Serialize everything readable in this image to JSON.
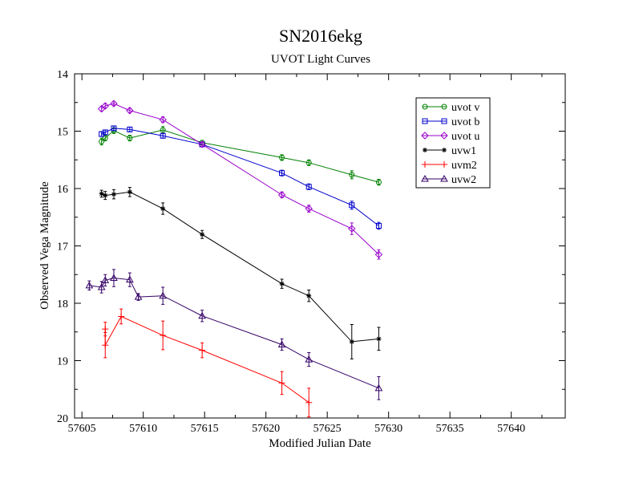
{
  "chart_data": {
    "type": "scatter",
    "title": "SN2016ekg",
    "subtitle": "UVOT Light Curves",
    "xlabel": "Modified Julian Date",
    "ylabel": "Observed Vega Magnitude",
    "xlim": [
      57604.4,
      57644.4
    ],
    "ylim": [
      20,
      14
    ],
    "y_inverted": true,
    "xticks": [
      57605,
      57610,
      57615,
      57620,
      57625,
      57630,
      57635,
      57640
    ],
    "yticks": [
      14,
      15,
      16,
      17,
      18,
      19,
      20
    ],
    "legend_position": "top-right",
    "series": [
      {
        "name": "uvot v",
        "color": "#008000",
        "marker": "circle",
        "points": [
          {
            "x": 57606.6,
            "y": 15.18,
            "err": 0.06
          },
          {
            "x": 57606.9,
            "y": 15.12,
            "err": 0.05
          },
          {
            "x": 57607.6,
            "y": 14.99,
            "err": 0.05
          },
          {
            "x": 57608.9,
            "y": 15.12,
            "err": 0.05
          },
          {
            "x": 57611.6,
            "y": 14.98,
            "err": 0.06
          },
          {
            "x": 57614.8,
            "y": 15.2,
            "err": 0.04
          },
          {
            "x": 57621.3,
            "y": 15.46,
            "err": 0.05
          },
          {
            "x": 57623.5,
            "y": 15.55,
            "err": 0.05
          },
          {
            "x": 57627.0,
            "y": 15.76,
            "err": 0.07
          },
          {
            "x": 57629.2,
            "y": 15.89,
            "err": 0.05
          }
        ]
      },
      {
        "name": "uvot b",
        "color": "#0000cc",
        "marker": "square",
        "points": [
          {
            "x": 57606.6,
            "y": 15.05,
            "err": 0.04
          },
          {
            "x": 57606.9,
            "y": 15.02,
            "err": 0.04
          },
          {
            "x": 57607.6,
            "y": 14.95,
            "err": 0.04
          },
          {
            "x": 57608.9,
            "y": 14.97,
            "err": 0.04
          },
          {
            "x": 57611.6,
            "y": 15.08,
            "err": 0.04
          },
          {
            "x": 57614.8,
            "y": 15.23,
            "err": 0.04
          },
          {
            "x": 57621.3,
            "y": 15.73,
            "err": 0.05
          },
          {
            "x": 57623.5,
            "y": 15.97,
            "err": 0.05
          },
          {
            "x": 57627.0,
            "y": 16.29,
            "err": 0.07
          },
          {
            "x": 57629.2,
            "y": 16.65,
            "err": 0.06
          }
        ]
      },
      {
        "name": "uvot u",
        "color": "#9900cc",
        "marker": "diamond",
        "points": [
          {
            "x": 57606.6,
            "y": 14.61,
            "err": 0.04
          },
          {
            "x": 57606.9,
            "y": 14.56,
            "err": 0.04
          },
          {
            "x": 57607.6,
            "y": 14.52,
            "err": 0.03
          },
          {
            "x": 57608.9,
            "y": 14.64,
            "err": 0.04
          },
          {
            "x": 57611.6,
            "y": 14.8,
            "err": 0.05
          },
          {
            "x": 57614.8,
            "y": 15.23,
            "err": 0.04
          },
          {
            "x": 57621.3,
            "y": 16.11,
            "err": 0.05
          },
          {
            "x": 57623.5,
            "y": 16.35,
            "err": 0.06
          },
          {
            "x": 57627.0,
            "y": 16.7,
            "err": 0.1
          },
          {
            "x": 57629.2,
            "y": 17.15,
            "err": 0.08
          }
        ]
      },
      {
        "name": "uvw1",
        "color": "#000000",
        "marker": "star",
        "points": [
          {
            "x": 57606.6,
            "y": 16.09,
            "err": 0.06
          },
          {
            "x": 57606.9,
            "y": 16.12,
            "err": 0.07
          },
          {
            "x": 57607.6,
            "y": 16.1,
            "err": 0.08
          },
          {
            "x": 57608.9,
            "y": 16.06,
            "err": 0.08
          },
          {
            "x": 57611.6,
            "y": 16.35,
            "err": 0.1
          },
          {
            "x": 57614.8,
            "y": 16.8,
            "err": 0.07
          },
          {
            "x": 57621.3,
            "y": 17.66,
            "err": 0.08
          },
          {
            "x": 57623.5,
            "y": 17.87,
            "err": 0.1
          },
          {
            "x": 57627.0,
            "y": 18.67,
            "err": 0.3
          },
          {
            "x": 57629.2,
            "y": 18.62,
            "err": 0.2
          }
        ]
      },
      {
        "name": "uvm2",
        "color": "#ff0000",
        "marker": "plus",
        "points": [
          {
            "x": 57606.9,
            "y": 18.45,
            "err": 0.12
          },
          {
            "x": 57606.9,
            "y": 18.73,
            "err": 0.22
          },
          {
            "x": 57608.2,
            "y": 18.23,
            "err": 0.13
          },
          {
            "x": 57611.6,
            "y": 18.56,
            "err": 0.25
          },
          {
            "x": 57614.8,
            "y": 18.82,
            "err": 0.13
          },
          {
            "x": 57621.3,
            "y": 19.39,
            "err": 0.2
          },
          {
            "x": 57623.5,
            "y": 19.73,
            "err": 0.25
          }
        ]
      },
      {
        "name": "uvw2",
        "color": "#330066",
        "marker": "triangle",
        "points": [
          {
            "x": 57605.6,
            "y": 17.69,
            "err": 0.08
          },
          {
            "x": 57606.6,
            "y": 17.72,
            "err": 0.1
          },
          {
            "x": 57606.9,
            "y": 17.6,
            "err": 0.1
          },
          {
            "x": 57607.6,
            "y": 17.56,
            "err": 0.15
          },
          {
            "x": 57608.9,
            "y": 17.59,
            "err": 0.12
          },
          {
            "x": 57609.6,
            "y": 17.89,
            "err": 0.06
          },
          {
            "x": 57611.6,
            "y": 17.87,
            "err": 0.15
          },
          {
            "x": 57614.8,
            "y": 18.22,
            "err": 0.1
          },
          {
            "x": 57621.3,
            "y": 18.72,
            "err": 0.1
          },
          {
            "x": 57623.5,
            "y": 18.98,
            "err": 0.12
          },
          {
            "x": 57629.2,
            "y": 19.48,
            "err": 0.2
          }
        ]
      }
    ]
  }
}
